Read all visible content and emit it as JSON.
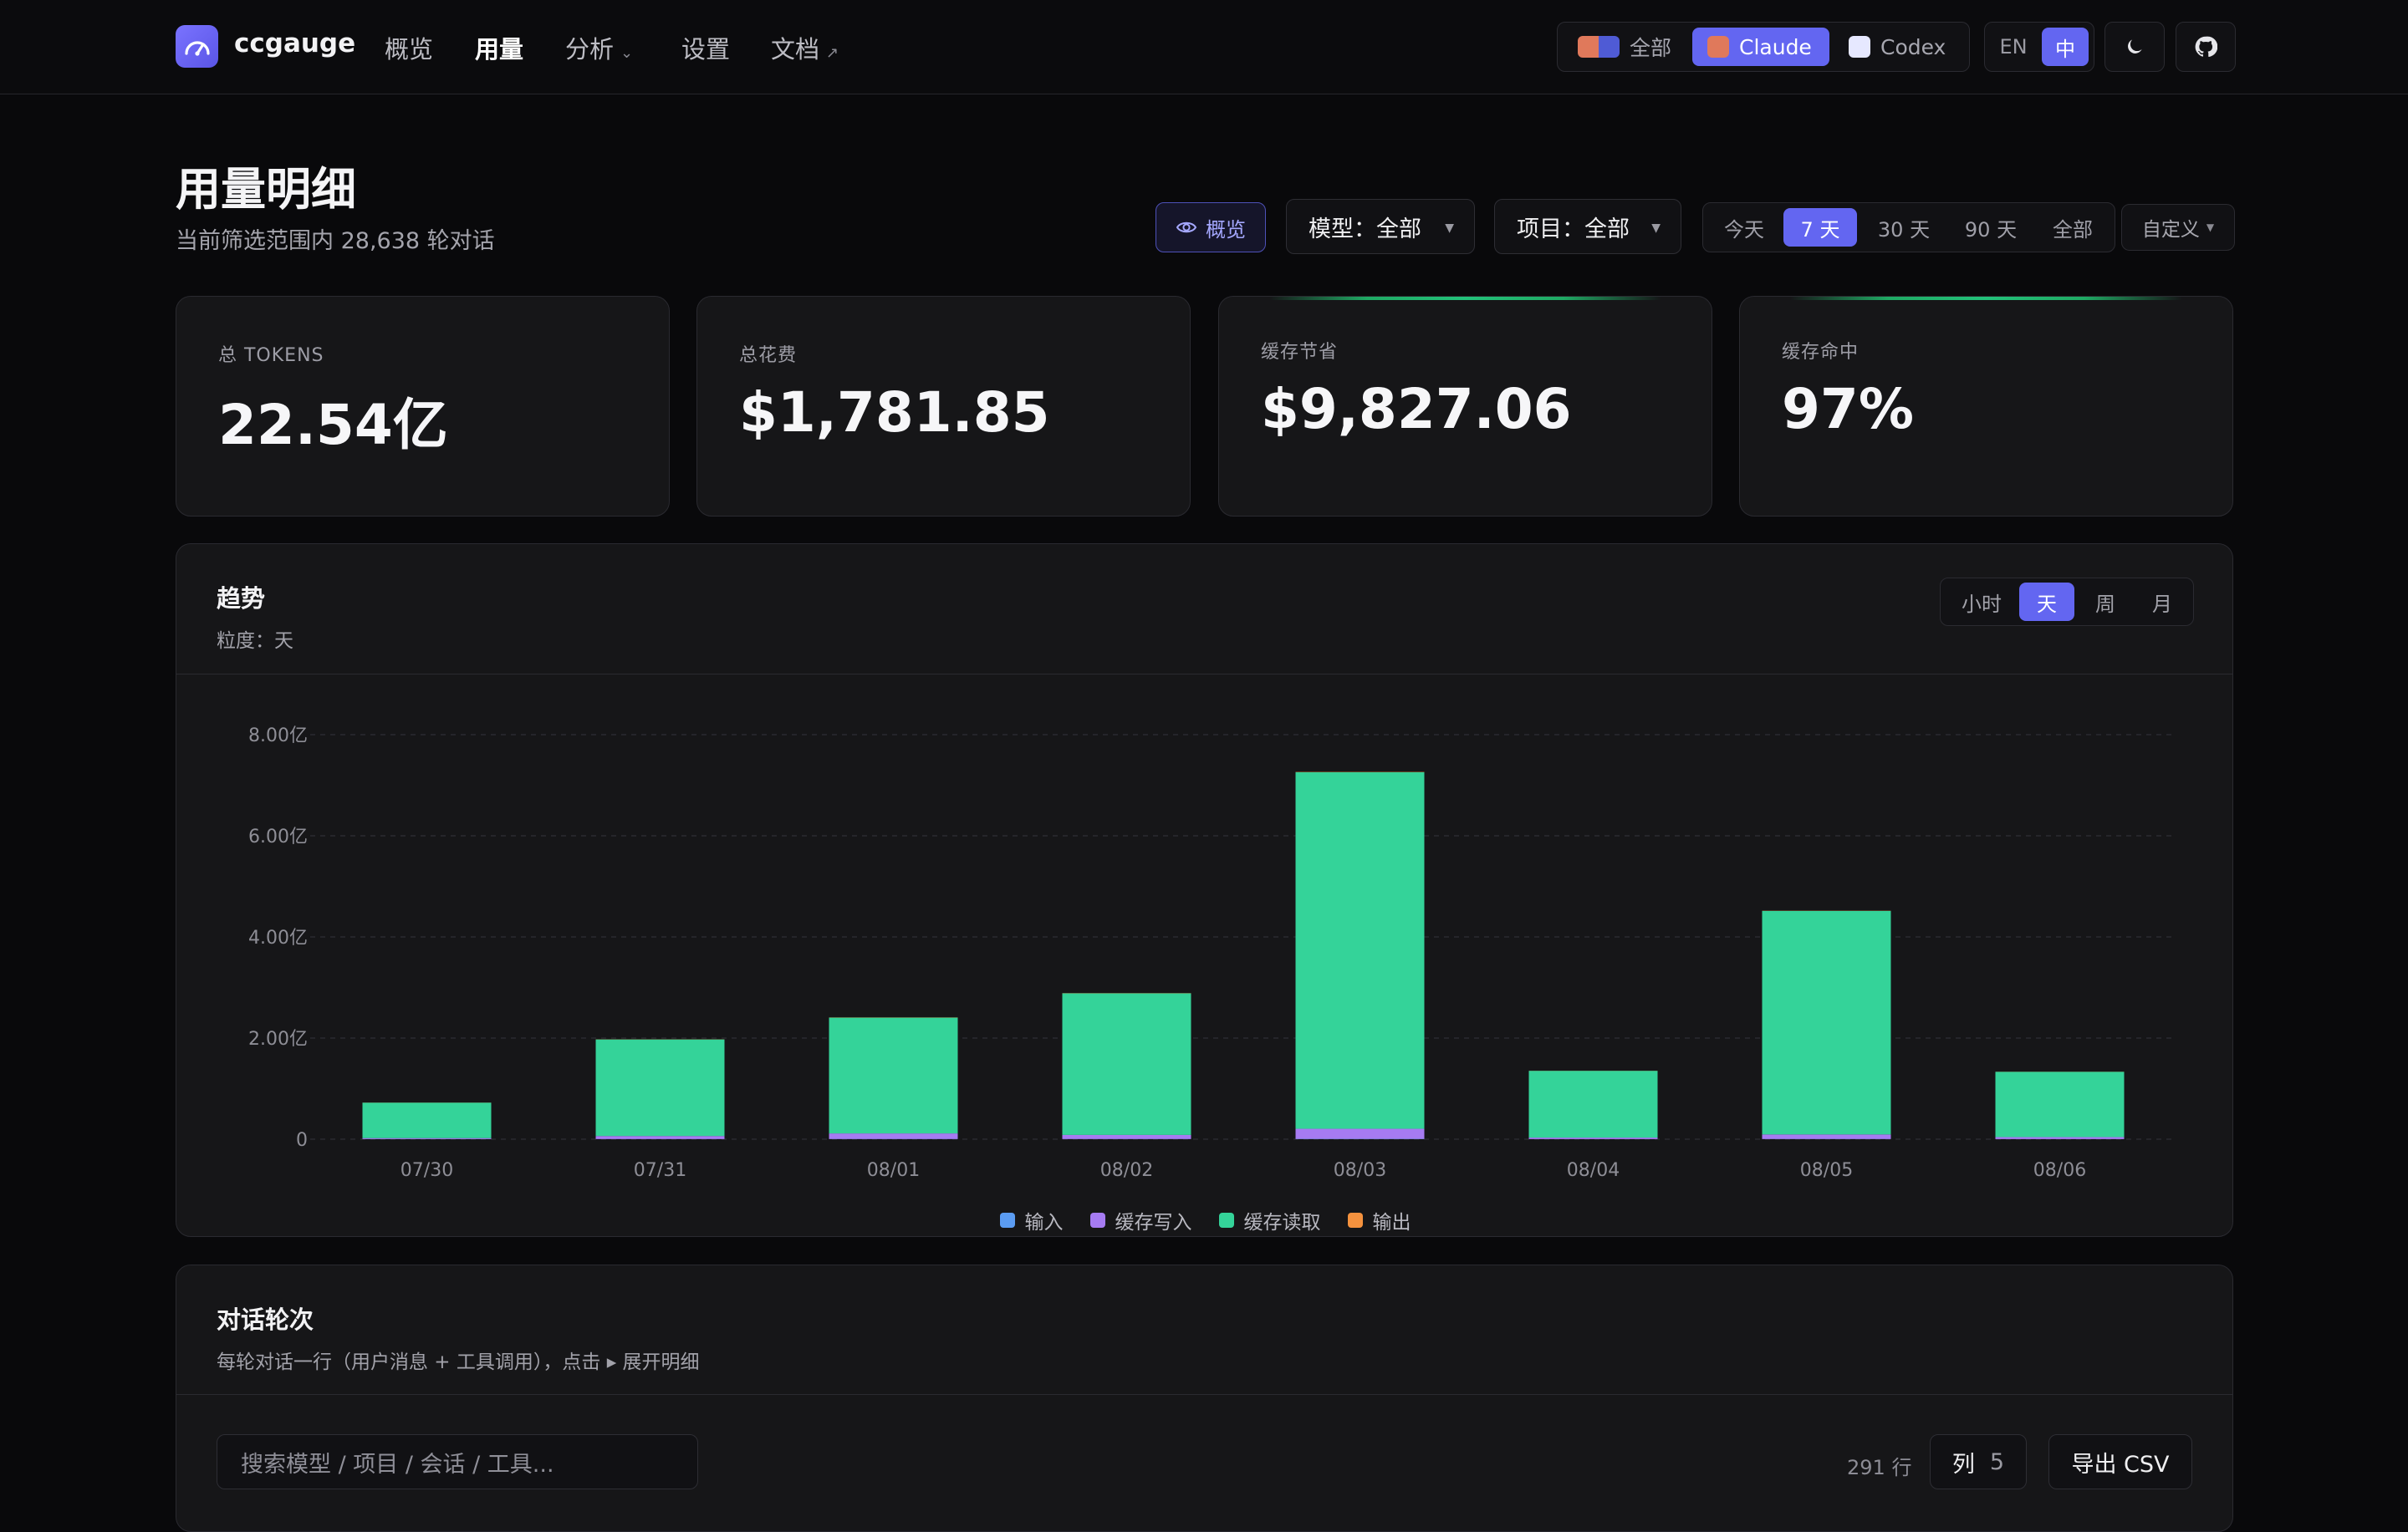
{
  "app": {
    "name": "ccgauge"
  },
  "nav": {
    "overview": "概览",
    "usage": "用量",
    "analysis": "分析",
    "settings": "设置",
    "docs": "文档"
  },
  "source_filter": {
    "all": "全部",
    "claude": "Claude",
    "codex": "Codex",
    "selected": "Claude"
  },
  "language": {
    "en": "EN",
    "zh": "中",
    "selected": "中"
  },
  "header": {
    "title": "用量明细",
    "subtitle": "当前筛选范围内 28,638 轮对话"
  },
  "filters": {
    "overview_button": "概览",
    "model": "模型：全部",
    "project": "项目：全部",
    "ranges": [
      "今天",
      "7 天",
      "30 天",
      "90 天",
      "全部"
    ],
    "selected_range": "7 天",
    "custom": "自定义"
  },
  "stats": [
    {
      "label": "总 TOKENS",
      "value": "22.54亿"
    },
    {
      "label": "总花费",
      "value": "$1,781.85"
    },
    {
      "label": "缓存节省",
      "value": "$9,827.06"
    },
    {
      "label": "缓存命中",
      "value": "97%"
    }
  ],
  "trend": {
    "title": "趋势",
    "subtitle": "粒度：天",
    "granularity": [
      "小时",
      "天",
      "周",
      "月"
    ],
    "selected_granularity": "天"
  },
  "chart_data": {
    "type": "bar",
    "stacked": true,
    "categories": [
      "07/30",
      "07/31",
      "08/01",
      "08/02",
      "08/03",
      "08/04",
      "08/05",
      "08/06"
    ],
    "series": [
      {
        "name": "输入",
        "color": "#5b9cf2",
        "values": [
          0.002,
          0.003,
          0.004,
          0.004,
          0.006,
          0.002,
          0.004,
          0.002
        ]
      },
      {
        "name": "缓存写入",
        "color": "#a67bf2",
        "values": [
          0.02,
          0.06,
          0.11,
          0.08,
          0.2,
          0.03,
          0.09,
          0.04
        ]
      },
      {
        "name": "缓存读取",
        "color": "#34d399",
        "values": [
          0.7,
          1.91,
          2.29,
          2.8,
          7.05,
          1.32,
          4.42,
          1.29
        ]
      },
      {
        "name": "输出",
        "color": "#f5923e",
        "values": [
          0.002,
          0.003,
          0.004,
          0.004,
          0.006,
          0.002,
          0.004,
          0.002
        ]
      }
    ],
    "y_ticks": [
      "0",
      "2.00亿",
      "4.00亿",
      "6.00亿",
      "8.00亿"
    ],
    "ylim": [
      0,
      8
    ],
    "y_unit": "亿",
    "grid": true,
    "legend_position": "bottom"
  },
  "rounds": {
    "title": "对话轮次",
    "subtitle": "每轮对话一行（用户消息 + 工具调用），点击 ▸ 展开明细",
    "search_placeholder": "搜索模型 / 项目 / 会话 / 工具...",
    "row_count": "291 行",
    "columns_label": "列",
    "columns_count": "5",
    "export": "导出 CSV"
  }
}
